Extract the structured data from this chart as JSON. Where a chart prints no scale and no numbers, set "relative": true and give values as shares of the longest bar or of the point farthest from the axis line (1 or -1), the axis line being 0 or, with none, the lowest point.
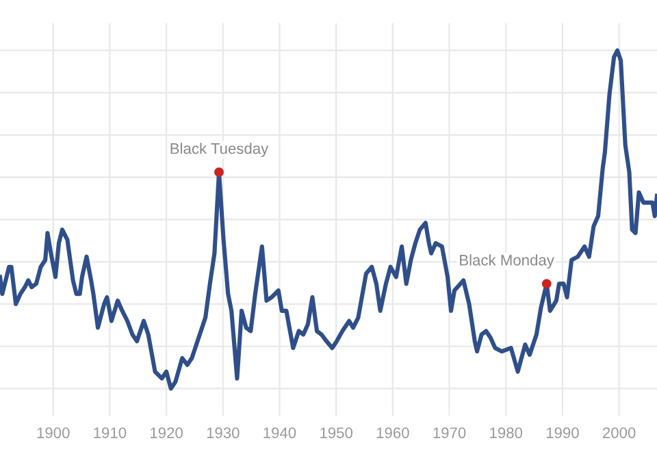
{
  "chart_data": {
    "type": "line",
    "relative": true,
    "grid": true,
    "tick_labels": "x",
    "marker": "none",
    "line_style": "solid",
    "xlim": [
      1890.6,
      2006.7
    ],
    "xticks": [
      1900,
      1910,
      1920,
      1930,
      1940,
      1950,
      1960,
      1970,
      1980,
      1990,
      2000
    ],
    "annotations": [
      {
        "text": "Black Tuesday",
        "x": 1929.3,
        "y": 0.64
      },
      {
        "text": "Black Monday",
        "x": 1987.2,
        "y": 0.31
      }
    ],
    "series": [
      {
        "color": "#2f4f8a",
        "x": [
          1890.6,
          1891.0,
          1892.2,
          1892.6,
          1893.4,
          1894.2,
          1895.0,
          1895.6,
          1896.2,
          1897.0,
          1897.8,
          1898.6,
          1899.0,
          1899.6,
          1900.4,
          1901.0,
          1901.6,
          1902.5,
          1903.5,
          1904.1,
          1904.7,
          1905.1,
          1905.9,
          1906.7,
          1907.1,
          1907.9,
          1909.0,
          1909.5,
          1910.3,
          1911.4,
          1912.2,
          1913.1,
          1914.0,
          1914.8,
          1916.0,
          1916.8,
          1918.0,
          1919.2,
          1920.0,
          1920.8,
          1921.6,
          1922.8,
          1923.7,
          1924.5,
          1925.3,
          1926.1,
          1926.9,
          1927.7,
          1928.5,
          1929.3,
          1930.1,
          1930.9,
          1931.5,
          1932.5,
          1933.3,
          1934.1,
          1934.9,
          1935.7,
          1936.9,
          1937.7,
          1938.6,
          1939.8,
          1940.4,
          1941.2,
          1942.4,
          1943.4,
          1944.2,
          1945.0,
          1945.8,
          1946.6,
          1947.4,
          1948.3,
          1949.3,
          1950.1,
          1951.1,
          1952.3,
          1953.0,
          1953.9,
          1955.3,
          1956.3,
          1957.1,
          1957.8,
          1958.8,
          1959.6,
          1960.6,
          1961.6,
          1962.4,
          1963.2,
          1964.0,
          1964.8,
          1965.8,
          1966.4,
          1966.8,
          1967.6,
          1968.7,
          1969.7,
          1970.3,
          1970.9,
          1972.5,
          1973.5,
          1974.5,
          1974.9,
          1975.7,
          1976.5,
          1977.3,
          1978.1,
          1979.3,
          1980.9,
          1982.1,
          1983.4,
          1984.2,
          1985.4,
          1986.2,
          1987.2,
          1987.8,
          1988.9,
          1989.4,
          1990.2,
          1990.8,
          1991.6,
          1992.7,
          1993.9,
          1994.7,
          1995.5,
          1996.3,
          1997.1,
          1997.5,
          1998.3,
          1999.1,
          1999.7,
          2000.3,
          2001.1,
          2001.8,
          2002.3,
          2002.9,
          2003.5,
          2004.3,
          2005.1,
          2005.9,
          2006.3,
          2006.7
        ],
        "values": [
          0.33,
          0.28,
          0.36,
          0.36,
          0.25,
          0.28,
          0.3,
          0.32,
          0.3,
          0.31,
          0.36,
          0.38,
          0.46,
          0.4,
          0.33,
          0.43,
          0.47,
          0.44,
          0.32,
          0.28,
          0.28,
          0.33,
          0.39,
          0.32,
          0.28,
          0.18,
          0.25,
          0.27,
          0.2,
          0.26,
          0.23,
          0.2,
          0.16,
          0.14,
          0.2,
          0.16,
          0.05,
          0.03,
          0.05,
          0.0,
          0.02,
          0.09,
          0.07,
          0.09,
          0.13,
          0.17,
          0.21,
          0.31,
          0.4,
          0.64,
          0.44,
          0.28,
          0.23,
          0.03,
          0.23,
          0.18,
          0.17,
          0.28,
          0.42,
          0.26,
          0.27,
          0.29,
          0.23,
          0.23,
          0.12,
          0.17,
          0.16,
          0.19,
          0.27,
          0.17,
          0.16,
          0.14,
          0.12,
          0.14,
          0.17,
          0.2,
          0.18,
          0.21,
          0.34,
          0.36,
          0.31,
          0.23,
          0.31,
          0.36,
          0.33,
          0.42,
          0.31,
          0.38,
          0.43,
          0.47,
          0.49,
          0.43,
          0.4,
          0.43,
          0.42,
          0.33,
          0.23,
          0.29,
          0.32,
          0.25,
          0.14,
          0.11,
          0.16,
          0.17,
          0.15,
          0.12,
          0.11,
          0.12,
          0.05,
          0.13,
          0.1,
          0.16,
          0.24,
          0.31,
          0.23,
          0.26,
          0.31,
          0.31,
          0.27,
          0.38,
          0.39,
          0.42,
          0.39,
          0.48,
          0.51,
          0.65,
          0.7,
          0.87,
          0.98,
          1.0,
          0.97,
          0.72,
          0.64,
          0.47,
          0.46,
          0.58,
          0.55,
          0.55,
          0.55,
          0.51,
          0.57
        ]
      }
    ]
  }
}
